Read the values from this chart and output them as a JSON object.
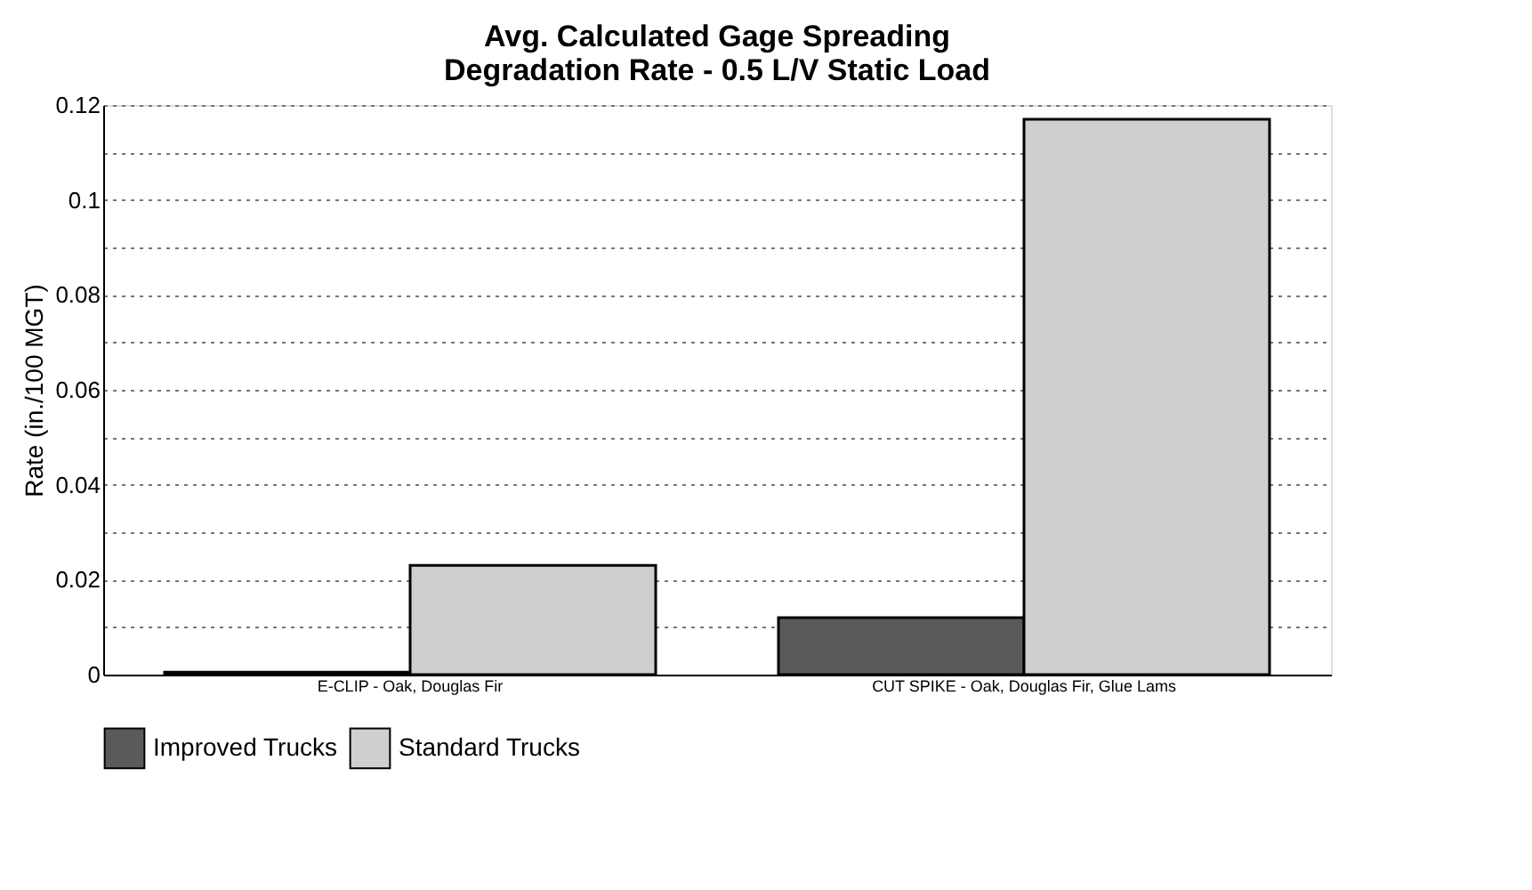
{
  "chart_data": {
    "type": "bar",
    "title": [
      "Avg. Calculated Gage Spreading",
      "Degradation Rate - 0.5 L/V Static Load"
    ],
    "ylabel": "Rate (in./100 MGT)",
    "categories": [
      "E-CLIP - Oak, Douglas Fir",
      "CUT SPIKE - Oak, Douglas Fir, Glue Lams"
    ],
    "series": [
      {
        "name": "Improved Trucks",
        "color": "#5a5a5a",
        "values": [
          0.0005,
          0.012
        ]
      },
      {
        "name": "Standard Trucks",
        "color": "#cfcfcf",
        "values": [
          0.023,
          0.117
        ]
      }
    ],
    "ylim": [
      0,
      0.12
    ],
    "yticks": [
      0,
      {
        "value": 0.01,
        "label": null
      },
      0.02,
      {
        "value": 0.03,
        "label": null
      },
      0.04,
      {
        "value": 0.05,
        "label": null
      },
      0.06,
      {
        "value": 0.07,
        "label": null
      },
      0.08,
      {
        "value": 0.09,
        "label": null
      },
      0.1,
      {
        "value": 0.11,
        "label": null
      },
      0.12
    ],
    "grid": "y",
    "legend": "bottom"
  }
}
